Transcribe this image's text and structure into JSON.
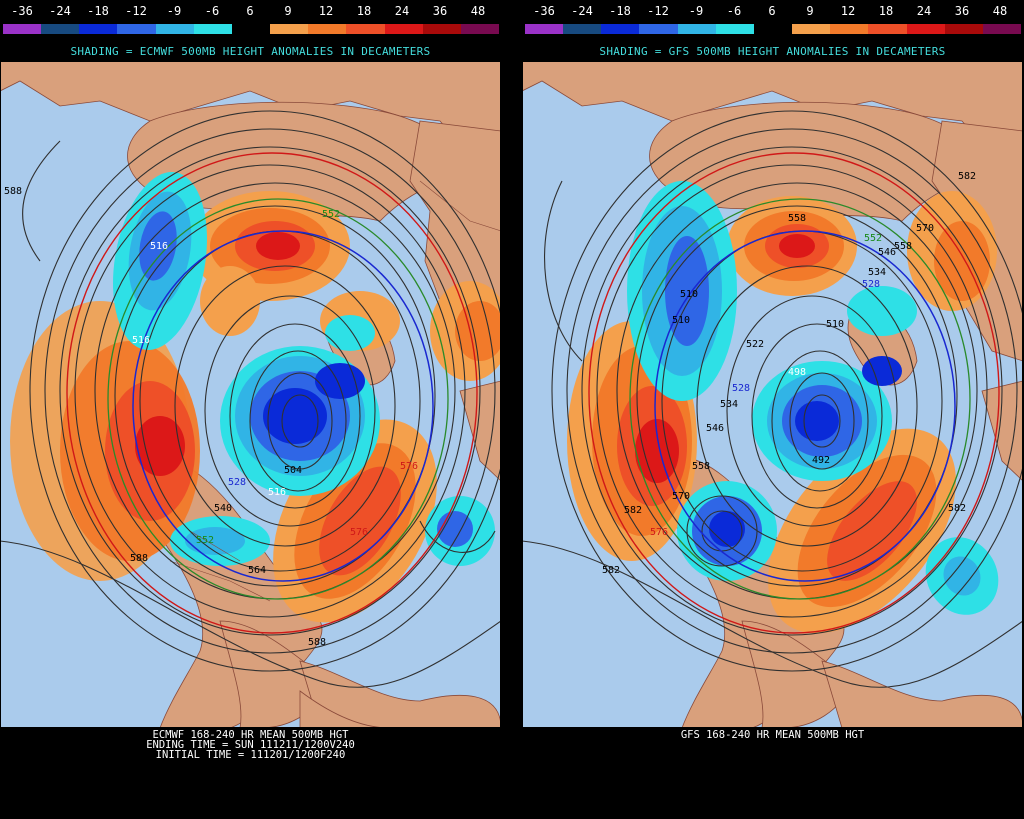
{
  "color_scale": {
    "labels": [
      "-36",
      "-24",
      "-18",
      "-12",
      "-9",
      "-6",
      "6",
      "9",
      "12",
      "18",
      "24",
      "36",
      "48"
    ],
    "colors": [
      "#9a32c8",
      "#174a80",
      "#0a2ad8",
      "#2f66e6",
      "#31b4e6",
      "#2ee0e6",
      "#000000",
      "#f4a04c",
      "#f27a2a",
      "#ee5028",
      "#dc1818",
      "#a80a0a",
      "#780a50"
    ]
  },
  "left": {
    "shading_title": "SHADING = ECMWF 500MB HEIGHT ANOMALIES IN DECAMETERS",
    "caption_lines": [
      "ECMWF 168-240 HR MEAN 500MB HGT",
      "ENDING TIME = SUN 111211/1200V240",
      "INITIAL TIME = 111201/1200F240"
    ],
    "contour_labels": [
      "588",
      "552",
      "516",
      "516",
      "504",
      "528",
      "540",
      "552",
      "564",
      "576",
      "576",
      "588",
      "588",
      "516"
    ]
  },
  "right": {
    "shading_title": "SHADING = GFS 500MB HEIGHT ANOMALIES IN DECAMETERS",
    "caption_lines": [
      "GFS 168-240 HR MEAN 500MB HGT"
    ],
    "contour_labels": [
      "582",
      "570",
      "558",
      "558",
      "552",
      "546",
      "534",
      "528",
      "510",
      "510",
      "522",
      "510",
      "498",
      "492",
      "528",
      "534",
      "546",
      "558",
      "570",
      "582",
      "576",
      "582",
      "582"
    ]
  },
  "colors": {
    "ocean": "#aacbec",
    "land": "#d9a07c",
    "background": "#000000",
    "title_text": "#44dcdc"
  }
}
